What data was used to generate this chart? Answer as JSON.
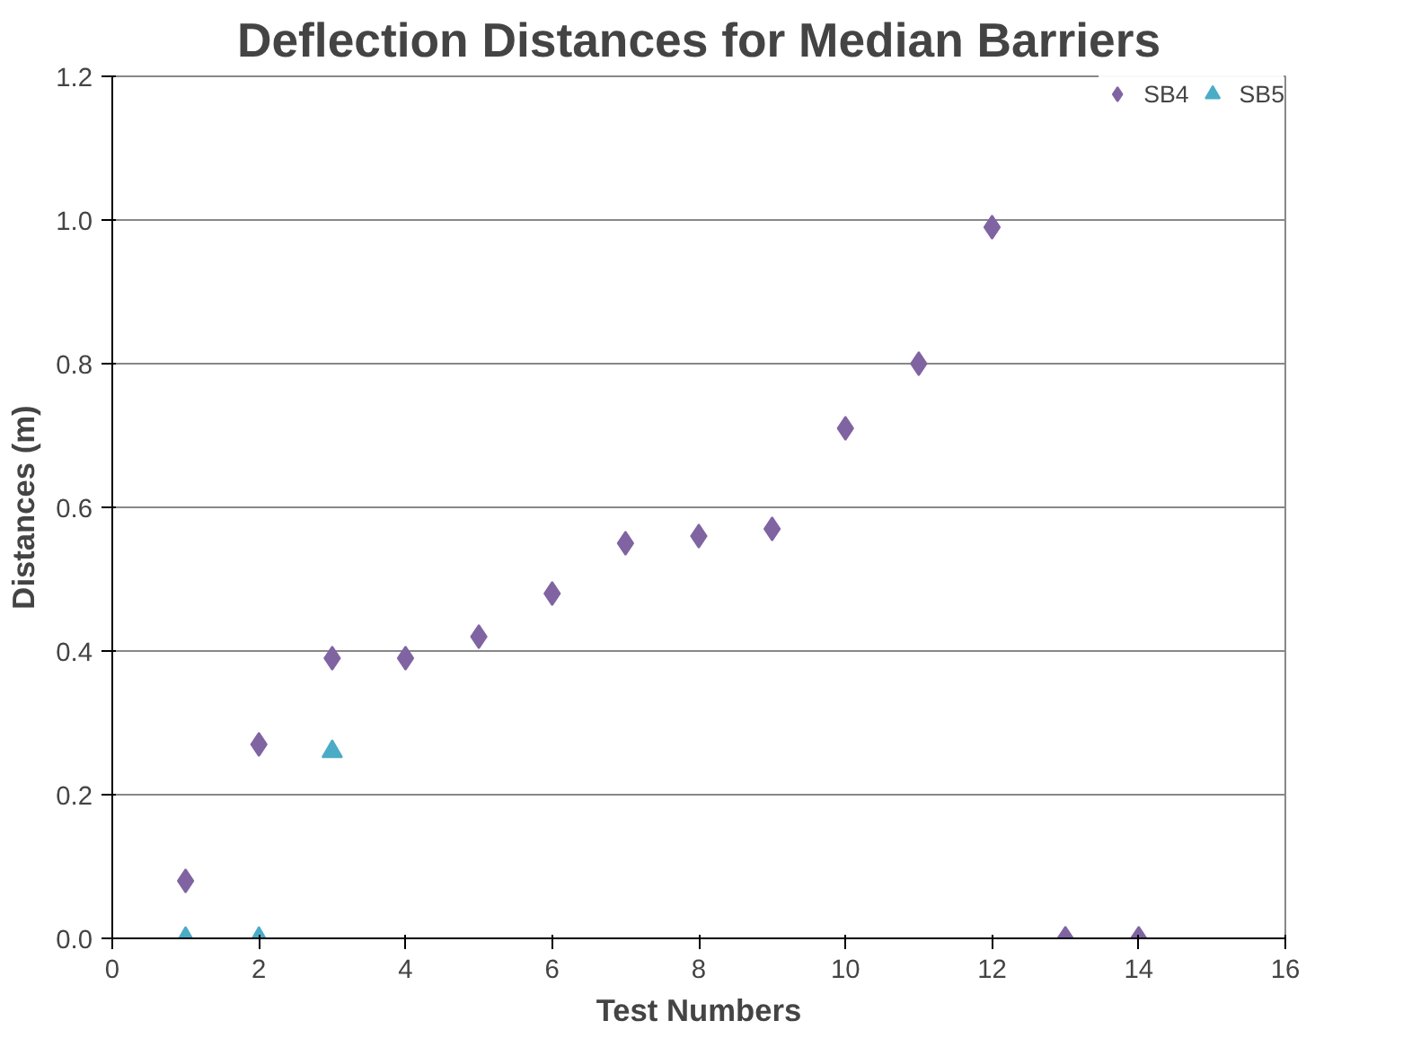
{
  "chart_data": {
    "type": "scatter",
    "title": "Deflection Distances for Median Barriers",
    "xlabel": "Test Numbers",
    "ylabel": "Distances (m)",
    "x": [
      1,
      2,
      3,
      4,
      5,
      6,
      7,
      8,
      9,
      10,
      11,
      12,
      13,
      14
    ],
    "series": [
      {
        "name": "SB4",
        "color": "#8064a2",
        "marker": "diamond",
        "values": [
          0.08,
          0.27,
          0.39,
          0.39,
          0.42,
          0.48,
          0.55,
          0.56,
          0.57,
          0.71,
          0.8,
          0.99,
          0.0,
          0.0
        ]
      },
      {
        "name": "SB5",
        "color": "#4bacc6",
        "marker": "triangle",
        "x": [
          1,
          2,
          3
        ],
        "values": [
          0.0,
          0.0,
          0.26
        ]
      }
    ],
    "xlim": [
      0,
      16
    ],
    "xticks": [
      0,
      2,
      4,
      6,
      8,
      10,
      12,
      14,
      16
    ],
    "ylim": [
      0,
      1.2
    ],
    "yticks": [
      {
        "value": 0,
        "label": "0.0"
      },
      0.2,
      0.4,
      0.6,
      0.8,
      {
        "value": 1,
        "label": "1.0"
      },
      1.2
    ],
    "grid": "y",
    "legend": "top right"
  }
}
